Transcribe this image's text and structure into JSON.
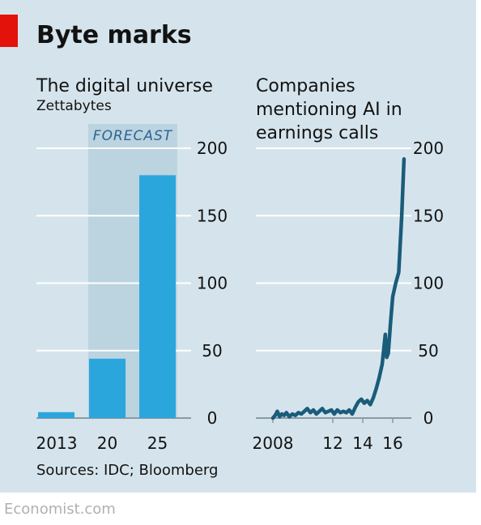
{
  "page": {
    "title": "Byte marks",
    "sources": "Sources: IDC; Bloomberg",
    "footer": "Economist.com"
  },
  "colors": {
    "background": "#d5e4ec",
    "bar": "#2aa6dd",
    "line": "#1a5c7a",
    "forecast_band": "#bcd3e0",
    "accent_red": "#e3120b",
    "gridline": "#ffffff"
  },
  "chart_data": [
    {
      "type": "bar",
      "title": "The digital universe",
      "subtitle": "Zettabytes",
      "annotation": "FORECAST",
      "categories": [
        "2013",
        "20",
        "25"
      ],
      "values": [
        4.4,
        44,
        180
      ],
      "ylim": [
        0,
        200
      ],
      "yticks": [
        0,
        50,
        100,
        150,
        200
      ],
      "y_axis_position": "right",
      "grid": true,
      "forecast_categories": [
        "20",
        "25"
      ]
    },
    {
      "type": "line",
      "title": "Companies mentioning AI in earnings calls",
      "xlim": [
        2007.8,
        2017.1
      ],
      "ylim": [
        0,
        200
      ],
      "yticks": [
        0,
        50,
        100,
        150,
        200
      ],
      "xticks": [
        2008,
        2012,
        2014,
        2016
      ],
      "xtick_labels": [
        "2008",
        "12",
        "14",
        "16"
      ],
      "y_axis_position": "right",
      "grid": true,
      "x": [
        2008.0,
        2008.15,
        2008.3,
        2008.45,
        2008.6,
        2008.75,
        2008.9,
        2009.1,
        2009.3,
        2009.5,
        2009.7,
        2009.9,
        2010.1,
        2010.3,
        2010.5,
        2010.7,
        2010.9,
        2011.1,
        2011.3,
        2011.5,
        2011.7,
        2011.9,
        2012.1,
        2012.3,
        2012.5,
        2012.7,
        2012.9,
        2013.1,
        2013.3,
        2013.5,
        2013.7,
        2013.9,
        2014.1,
        2014.3,
        2014.5,
        2014.7,
        2014.9,
        2015.1,
        2015.3,
        2015.5,
        2015.6,
        2015.7,
        2015.85,
        2016.0,
        2016.2,
        2016.4,
        2016.6,
        2016.75
      ],
      "y": [
        0,
        2,
        5,
        1,
        3,
        2,
        4,
        1,
        3,
        2,
        4,
        3,
        5,
        7,
        4,
        6,
        3,
        5,
        7,
        4,
        5,
        6,
        3,
        6,
        4,
        5,
        4,
        6,
        3,
        8,
        12,
        14,
        11,
        13,
        10,
        15,
        22,
        30,
        40,
        62,
        45,
        48,
        70,
        90,
        100,
        108,
        150,
        192
      ]
    }
  ]
}
